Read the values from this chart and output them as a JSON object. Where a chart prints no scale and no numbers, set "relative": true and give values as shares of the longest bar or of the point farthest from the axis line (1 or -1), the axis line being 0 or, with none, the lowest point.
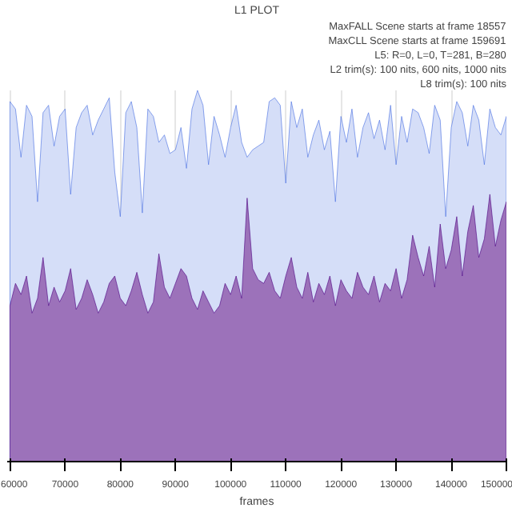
{
  "chart_data": {
    "type": "area",
    "title": "L1 PLOT",
    "xlabel": "frames",
    "relative": true,
    "x": [
      60000,
      61000,
      62000,
      63000,
      64000,
      65000,
      66000,
      67000,
      68000,
      69000,
      70000,
      71000,
      72000,
      73000,
      74000,
      75000,
      76000,
      77000,
      78000,
      79000,
      80000,
      81000,
      82000,
      83000,
      84000,
      85000,
      86000,
      87000,
      88000,
      89000,
      90000,
      91000,
      92000,
      93000,
      94000,
      95000,
      96000,
      97000,
      98000,
      99000,
      100000,
      101000,
      102000,
      103000,
      104000,
      105000,
      106000,
      107000,
      108000,
      109000,
      110000,
      111000,
      112000,
      113000,
      114000,
      115000,
      116000,
      117000,
      118000,
      119000,
      120000,
      121000,
      122000,
      123000,
      124000,
      125000,
      126000,
      127000,
      128000,
      129000,
      130000,
      131000,
      132000,
      133000,
      134000,
      135000,
      136000,
      137000,
      138000,
      139000,
      140000,
      141000,
      142000,
      143000,
      144000,
      145000,
      146000,
      147000,
      148000,
      149000,
      150000
    ],
    "series": [
      {
        "color": "#4169e1",
        "values": [
          0.97,
          0.95,
          0.82,
          0.96,
          0.93,
          0.7,
          0.94,
          0.96,
          0.85,
          0.93,
          0.95,
          0.72,
          0.9,
          0.94,
          0.96,
          0.88,
          0.92,
          0.95,
          0.98,
          0.78,
          0.66,
          0.94,
          0.97,
          0.9,
          0.67,
          0.95,
          0.93,
          0.86,
          0.88,
          0.83,
          0.84,
          0.9,
          0.79,
          0.95,
          1.0,
          0.96,
          0.8,
          0.93,
          0.88,
          0.82,
          0.9,
          0.96,
          0.86,
          0.82,
          0.84,
          0.85,
          0.86,
          0.97,
          0.98,
          0.96,
          0.75,
          0.97,
          0.9,
          0.95,
          0.82,
          0.88,
          0.92,
          0.84,
          0.89,
          0.7,
          0.93,
          0.86,
          0.95,
          0.82,
          0.9,
          0.94,
          0.87,
          0.92,
          0.84,
          0.96,
          0.8,
          0.93,
          0.86,
          0.95,
          0.94,
          0.9,
          0.83,
          0.96,
          0.92,
          0.66,
          0.9,
          0.97,
          0.94,
          0.85,
          0.96,
          0.92,
          0.8,
          0.95,
          0.9,
          0.88,
          0.93
        ]
      },
      {
        "color": "#4b0082",
        "values": [
          0.42,
          0.48,
          0.45,
          0.5,
          0.4,
          0.44,
          0.55,
          0.42,
          0.47,
          0.43,
          0.46,
          0.52,
          0.41,
          0.44,
          0.49,
          0.45,
          0.4,
          0.43,
          0.48,
          0.5,
          0.44,
          0.42,
          0.46,
          0.51,
          0.45,
          0.4,
          0.43,
          0.56,
          0.47,
          0.44,
          0.48,
          0.52,
          0.5,
          0.44,
          0.41,
          0.46,
          0.43,
          0.4,
          0.42,
          0.48,
          0.45,
          0.5,
          0.44,
          0.71,
          0.52,
          0.49,
          0.48,
          0.51,
          0.46,
          0.44,
          0.5,
          0.55,
          0.47,
          0.44,
          0.51,
          0.43,
          0.48,
          0.45,
          0.5,
          0.42,
          0.49,
          0.46,
          0.44,
          0.51,
          0.47,
          0.45,
          0.5,
          0.43,
          0.48,
          0.46,
          0.52,
          0.44,
          0.49,
          0.61,
          0.55,
          0.5,
          0.58,
          0.47,
          0.64,
          0.52,
          0.57,
          0.66,
          0.5,
          0.62,
          0.69,
          0.55,
          0.6,
          0.72,
          0.58,
          0.65,
          0.7
        ]
      }
    ],
    "xlim": [
      59500,
      150000
    ],
    "xticks": [
      60000,
      70000,
      80000,
      90000,
      100000,
      110000,
      120000,
      130000,
      140000,
      150000
    ],
    "grid": "x",
    "annotations": [
      "MaxFALL Scene starts at frame 18557",
      "MaxCLL Scene starts at frame 159691",
      "L5: R=0, L=0, T=281, B=280",
      "L2 trim(s): 100 nits, 600 nits, 1000 nits",
      "L8 trim(s): 100 nits"
    ]
  }
}
